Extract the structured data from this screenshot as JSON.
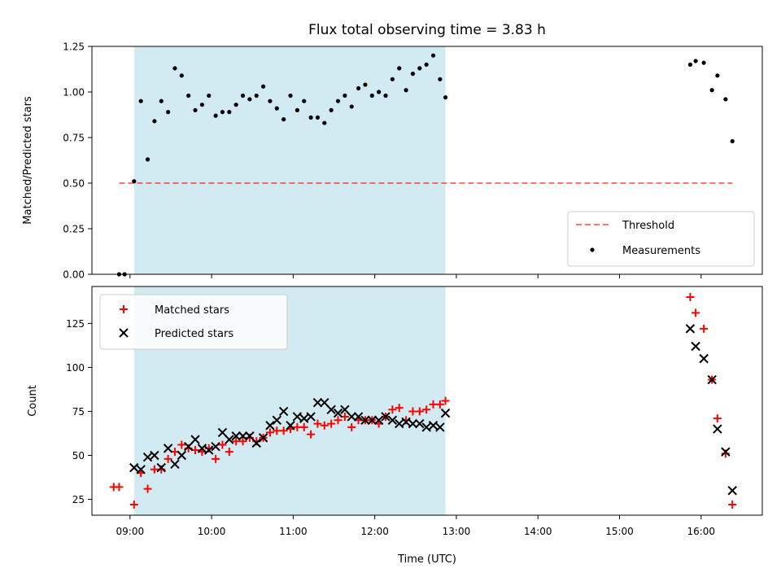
{
  "title": "Flux total observing time = 3.83 h",
  "chart_data": [
    {
      "type": "scatter",
      "panel": "top",
      "ylabel": "Matched/Predicted stars",
      "xlabel": "",
      "xlim": [
        "08:32",
        "16:45"
      ],
      "ylim": [
        0.0,
        1.25
      ],
      "yticks": [
        0.0,
        0.25,
        0.5,
        0.75,
        1.0,
        1.25
      ],
      "ytick_labels": [
        "0.00",
        "0.25",
        "0.50",
        "0.75",
        "1.00",
        "1.25"
      ],
      "shaded_region": {
        "x": [
          "09:03",
          "12:52"
        ],
        "color": "#add8e6"
      },
      "threshold": {
        "name": "Threshold",
        "value": 0.5,
        "x": [
          "08:52",
          "16:23"
        ],
        "color": "#ff0000"
      },
      "series": [
        {
          "name": "Measurements",
          "color": "#000000",
          "marker": "dot",
          "x": [
            "08:52",
            "08:56",
            "09:03",
            "09:08",
            "09:13",
            "09:18",
            "09:23",
            "09:28",
            "09:33",
            "09:38",
            "09:43",
            "09:48",
            "09:53",
            "09:58",
            "10:03",
            "10:08",
            "10:13",
            "10:18",
            "10:23",
            "10:28",
            "10:33",
            "10:38",
            "10:43",
            "10:48",
            "10:53",
            "10:58",
            "11:03",
            "11:08",
            "11:13",
            "11:18",
            "11:23",
            "11:28",
            "11:33",
            "11:38",
            "11:43",
            "11:48",
            "11:53",
            "11:58",
            "12:03",
            "12:08",
            "12:13",
            "12:18",
            "12:23",
            "12:28",
            "12:33",
            "12:38",
            "12:43",
            "12:48",
            "12:52",
            "15:52",
            "15:56",
            "16:02",
            "16:08",
            "16:12",
            "16:18",
            "16:23"
          ],
          "y": [
            0.0,
            0.0,
            0.51,
            0.95,
            0.63,
            0.84,
            0.95,
            0.89,
            1.13,
            1.09,
            0.98,
            0.9,
            0.93,
            0.98,
            0.87,
            0.89,
            0.89,
            0.93,
            0.98,
            0.96,
            0.98,
            1.03,
            0.95,
            0.91,
            0.85,
            0.98,
            0.9,
            0.95,
            0.86,
            0.86,
            0.83,
            0.9,
            0.95,
            0.98,
            0.92,
            1.02,
            1.04,
            0.98,
            1.0,
            0.98,
            1.07,
            1.13,
            1.01,
            1.1,
            1.13,
            1.15,
            1.2,
            1.07,
            0.97,
            1.15,
            1.17,
            1.16,
            1.01,
            1.09,
            0.96,
            0.73
          ]
        }
      ],
      "legend": {
        "position": "lower-right",
        "entries": [
          "Threshold",
          "Measurements"
        ]
      }
    },
    {
      "type": "scatter",
      "panel": "bottom",
      "ylabel": "Count",
      "xlabel": "Time (UTC)",
      "xlim": [
        "08:32",
        "16:45"
      ],
      "xticks": [
        "09:00",
        "10:00",
        "11:00",
        "12:00",
        "13:00",
        "14:00",
        "15:00",
        "16:00"
      ],
      "ylim": [
        16,
        146
      ],
      "yticks": [
        25,
        50,
        75,
        100,
        125
      ],
      "ytick_labels": [
        "25",
        "50",
        "75",
        "100",
        "125"
      ],
      "shaded_region": {
        "x": [
          "09:03",
          "12:52"
        ],
        "color": "#add8e6"
      },
      "series": [
        {
          "name": "Matched stars",
          "color": "#ff0000",
          "marker": "plus",
          "x": [
            "08:48",
            "08:52",
            "09:03",
            "09:08",
            "09:13",
            "09:18",
            "09:23",
            "09:28",
            "09:33",
            "09:38",
            "09:43",
            "09:48",
            "09:53",
            "09:58",
            "10:03",
            "10:08",
            "10:13",
            "10:18",
            "10:23",
            "10:28",
            "10:33",
            "10:38",
            "10:43",
            "10:48",
            "10:53",
            "10:58",
            "11:03",
            "11:08",
            "11:13",
            "11:18",
            "11:23",
            "11:28",
            "11:33",
            "11:38",
            "11:43",
            "11:48",
            "11:53",
            "11:58",
            "12:03",
            "12:08",
            "12:13",
            "12:18",
            "12:23",
            "12:28",
            "12:33",
            "12:38",
            "12:43",
            "12:48",
            "12:52",
            "15:52",
            "15:56",
            "16:02",
            "16:08",
            "16:12",
            "16:18",
            "16:23"
          ],
          "y": [
            32,
            32,
            22,
            40,
            31,
            42,
            42,
            48,
            52,
            56,
            54,
            53,
            52,
            54,
            48,
            56,
            52,
            58,
            58,
            60,
            58,
            60,
            63,
            64,
            64,
            65,
            66,
            66,
            62,
            68,
            67,
            68,
            70,
            72,
            66,
            70,
            70,
            70,
            68,
            72,
            76,
            77,
            70,
            75,
            75,
            76,
            79,
            79,
            81,
            140,
            131,
            122,
            93,
            71,
            51,
            22
          ]
        },
        {
          "name": "Predicted stars",
          "color": "#000000",
          "marker": "x",
          "x": [
            "09:03",
            "09:08",
            "09:13",
            "09:18",
            "09:23",
            "09:28",
            "09:33",
            "09:38",
            "09:43",
            "09:48",
            "09:53",
            "09:58",
            "10:03",
            "10:08",
            "10:13",
            "10:18",
            "10:23",
            "10:28",
            "10:33",
            "10:38",
            "10:43",
            "10:48",
            "10:53",
            "10:58",
            "11:03",
            "11:08",
            "11:13",
            "11:18",
            "11:23",
            "11:28",
            "11:33",
            "11:38",
            "11:43",
            "11:48",
            "11:53",
            "11:58",
            "12:03",
            "12:08",
            "12:13",
            "12:18",
            "12:23",
            "12:28",
            "12:33",
            "12:38",
            "12:43",
            "12:48",
            "12:52",
            "15:52",
            "15:56",
            "16:02",
            "16:08",
            "16:12",
            "16:18",
            "16:23"
          ],
          "y": [
            43,
            42,
            49,
            50,
            43,
            54,
            45,
            50,
            55,
            59,
            54,
            53,
            55,
            63,
            59,
            61,
            61,
            61,
            57,
            60,
            67,
            70,
            75,
            67,
            72,
            71,
            72,
            80,
            80,
            76,
            74,
            76,
            72,
            72,
            70,
            70,
            70,
            72,
            70,
            68,
            69,
            68,
            68,
            66,
            67,
            66,
            74,
            122,
            112,
            105,
            93,
            65,
            52,
            30
          ]
        }
      ],
      "legend": {
        "position": "upper-left",
        "entries": [
          "Matched stars",
          "Predicted stars"
        ]
      }
    }
  ]
}
